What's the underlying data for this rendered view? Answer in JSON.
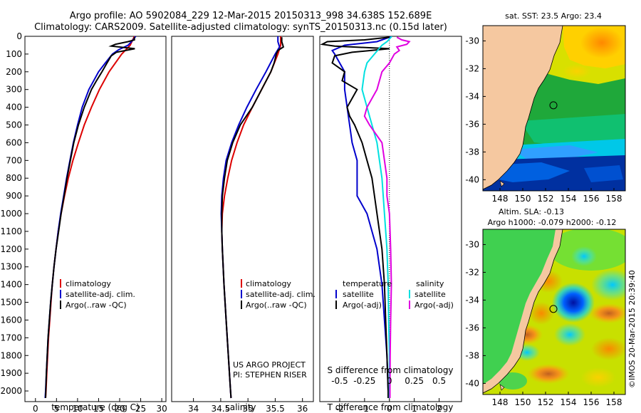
{
  "header": {
    "title_line1": "Argo profile: AO 5902084_229 12-Mar-2015 20150313_998 34.638S 152.689E",
    "title_line2": "Climatology: CARS2009. Satellite-adjusted climatology: synTS_20150313.nc (0.15d later)"
  },
  "chart_data": [
    {
      "type": "line",
      "title": "",
      "xlabel": "temperature (deg C)",
      "ylabel": "",
      "xlim": [
        -2.5,
        31
      ],
      "ylim": [
        2060,
        0
      ],
      "xticks": [
        "0",
        "5",
        "10",
        "15",
        "20",
        "25",
        "30"
      ],
      "xtick_values": [
        0,
        5,
        10,
        15,
        20,
        25,
        30
      ],
      "yticks": [
        "0",
        "100",
        "200",
        "300",
        "400",
        "500",
        "600",
        "700",
        "800",
        "900",
        "1000",
        "1100",
        "1200",
        "1300",
        "1400",
        "1500",
        "1600",
        "1700",
        "1800",
        "1900",
        "2000"
      ],
      "legend": [
        "climatology",
        "satellite-adj. clim.",
        "Argo(..raw -QC)"
      ],
      "series": [
        {
          "name": "climatology",
          "color": "#dd0000",
          "depth": [
            0,
            50,
            100,
            200,
            300,
            400,
            500,
            600,
            700,
            800,
            900,
            1000,
            1100,
            1200,
            1300,
            1400,
            1500,
            1600,
            1700,
            1800,
            1900,
            2000,
            2040
          ],
          "values": [
            23.5,
            22.5,
            20.5,
            17.5,
            15.2,
            13.3,
            11.6,
            10.2,
            8.9,
            7.8,
            6.9,
            6.1,
            5.4,
            4.9,
            4.4,
            4.0,
            3.7,
            3.4,
            3.1,
            2.9,
            2.7,
            2.5,
            2.4
          ]
        },
        {
          "name": "satellite-adj. clim.",
          "color": "#0000cc",
          "depth": [
            0,
            20,
            50,
            75,
            100,
            150,
            200,
            300,
            400,
            500,
            600,
            700,
            800,
            900,
            1000,
            1100,
            1200,
            1300,
            1400,
            1500,
            1600,
            1700,
            1800,
            1900,
            2000,
            2040
          ],
          "values": [
            23.8,
            23.2,
            22.0,
            19.8,
            18.3,
            16.6,
            15.0,
            12.7,
            11.1,
            10.0,
            9.0,
            8.2,
            7.4,
            6.7,
            6.0,
            5.4,
            4.9,
            4.4,
            4.0,
            3.6,
            3.3,
            3.0,
            2.8,
            2.6,
            2.4,
            2.3
          ]
        },
        {
          "name": "Argo(..raw -QC)",
          "color": "#000000",
          "depth": [
            5,
            20,
            30,
            45,
            55,
            70,
            90,
            110,
            150,
            200,
            250,
            300,
            400,
            500,
            600,
            700,
            800,
            900,
            1000,
            1100,
            1200,
            1300,
            1400,
            1500,
            1600,
            1700,
            1800,
            1900,
            2000,
            2040
          ],
          "values": [
            23.5,
            23.5,
            22.0,
            19.0,
            18.0,
            23.6,
            19.2,
            18.0,
            17.0,
            15.8,
            14.5,
            13.3,
            11.6,
            10.2,
            9.1,
            8.3,
            7.5,
            6.8,
            6.1,
            5.5,
            4.9,
            4.4,
            4.0,
            3.6,
            3.3,
            3.0,
            2.8,
            2.6,
            2.45,
            2.4
          ]
        }
      ]
    },
    {
      "type": "line",
      "title": "",
      "xlabel": "salinity",
      "ylabel": "",
      "xlim": [
        33.6,
        36.2
      ],
      "ylim": [
        2060,
        0
      ],
      "xticks": [
        "34",
        "34.5",
        "35",
        "35.5",
        "36"
      ],
      "xtick_values": [
        34,
        34.5,
        35,
        35.5,
        36
      ],
      "legend": [
        "climatology",
        "satellite-adj. clim.",
        "Argo(..raw -QC)"
      ],
      "annotation": [
        "US ARGO PROJECT",
        "PI: STEPHEN RISER"
      ],
      "series": [
        {
          "name": "climatology",
          "color": "#dd0000",
          "depth": [
            0,
            50,
            100,
            200,
            300,
            400,
            500,
            600,
            700,
            800,
            900,
            1000,
            1100,
            1200,
            1400,
            1600,
            1800,
            2000,
            2040
          ],
          "values": [
            35.6,
            35.6,
            35.55,
            35.42,
            35.25,
            35.08,
            34.92,
            34.8,
            34.7,
            34.63,
            34.57,
            34.53,
            34.52,
            34.53,
            34.56,
            34.6,
            34.64,
            34.68,
            34.69
          ]
        },
        {
          "name": "satellite-adj. clim.",
          "color": "#0000cc",
          "depth": [
            0,
            30,
            60,
            100,
            200,
            300,
            400,
            500,
            600,
            700,
            800,
            900,
            1000,
            1100,
            1200,
            1400,
            1600,
            1800,
            2000,
            2040
          ],
          "values": [
            35.55,
            35.55,
            35.58,
            35.5,
            35.33,
            35.15,
            34.98,
            34.83,
            34.7,
            34.6,
            34.55,
            34.52,
            34.51,
            34.52,
            34.53,
            34.56,
            34.6,
            34.64,
            34.68,
            34.69
          ]
        },
        {
          "name": "Argo(..raw -QC)",
          "color": "#000000",
          "depth": [
            5,
            30,
            60,
            80,
            100,
            150,
            200,
            300,
            400,
            500,
            600,
            700,
            800,
            900,
            1000,
            1100,
            1200,
            1400,
            1600,
            1800,
            2000,
            2040
          ],
          "values": [
            35.62,
            35.62,
            35.65,
            35.55,
            35.52,
            35.48,
            35.42,
            35.25,
            35.08,
            34.86,
            34.72,
            34.62,
            34.57,
            34.53,
            34.52,
            34.52,
            34.53,
            34.56,
            34.6,
            34.64,
            34.68,
            34.69
          ]
        }
      ]
    },
    {
      "type": "line",
      "title": "",
      "xlabel": "T difference from climatology",
      "xlabel_top": "S difference from climatology",
      "ylabel": "",
      "xlim": [
        -2.8,
        2.9
      ],
      "ylim": [
        2060,
        0
      ],
      "xticks": [
        "-2",
        "-1",
        "0",
        "1",
        "2"
      ],
      "xtick_values": [
        -2,
        -1,
        0,
        1,
        2
      ],
      "s_ticks": [
        "-0.5",
        "-0.25",
        "0",
        "0.25",
        "0.5"
      ],
      "s_tick_positions_in_T_units": [
        -2,
        -1,
        0,
        1,
        2
      ],
      "legend_group1": "temperature",
      "legend_group2": "salinity",
      "legend": [
        "satellite",
        "Argo(-adj)",
        "satellite",
        "Argo(-adj)"
      ],
      "series": [
        {
          "name": "temperature satellite",
          "color": "#0000cc",
          "depth": [
            0,
            30,
            50,
            80,
            100,
            150,
            200,
            300,
            400,
            500,
            600,
            700,
            800,
            900,
            1000,
            1200,
            1400,
            1600,
            1800,
            2000,
            2040
          ],
          "values": [
            0.1,
            -0.5,
            -1.8,
            -2.3,
            -2.2,
            -2.0,
            -1.8,
            -1.8,
            -1.7,
            -1.6,
            -1.5,
            -1.3,
            -1.3,
            -1.3,
            -0.9,
            -0.5,
            -0.3,
            -0.2,
            -0.1,
            -0.05,
            -0.05
          ]
        },
        {
          "name": "temperature Argo(-adj)",
          "color": "#000000",
          "depth": [
            5,
            20,
            30,
            45,
            55,
            70,
            90,
            110,
            150,
            200,
            250,
            300,
            400,
            450,
            500,
            600,
            700,
            800,
            900,
            1000,
            1100,
            1200,
            1400,
            1600,
            1800,
            2000,
            2040
          ],
          "values": [
            0.0,
            -1.0,
            -2.5,
            -2.7,
            -2.2,
            0.0,
            -1.5,
            -2.2,
            -2.3,
            -1.8,
            -1.9,
            -1.3,
            -1.7,
            -1.6,
            -1.4,
            -1.1,
            -0.9,
            -0.7,
            -0.6,
            -0.5,
            -0.4,
            -0.3,
            -0.2,
            -0.15,
            -0.1,
            -0.05,
            -0.05
          ]
        },
        {
          "name": "salinity satellite",
          "color": "#00e0e0",
          "depth": [
            0,
            30,
            50,
            100,
            150,
            200,
            300,
            400,
            500,
            600,
            700,
            800,
            1000,
            1200,
            1400,
            1600,
            1800,
            2000,
            2040
          ],
          "values": [
            0.1,
            -0.1,
            -0.3,
            -0.6,
            -0.9,
            -1.0,
            -1.1,
            -0.9,
            -0.7,
            -0.5,
            -0.4,
            -0.3,
            -0.2,
            -0.1,
            -0.05,
            -0.03,
            0.0,
            0.0,
            0.0
          ]
        },
        {
          "name": "salinity Argo(-adj)",
          "color": "#e000e0",
          "depth": [
            5,
            20,
            30,
            45,
            60,
            80,
            100,
            150,
            200,
            300,
            400,
            450,
            500,
            600,
            700,
            800,
            900,
            1000,
            1200,
            1400,
            1600,
            1800,
            2000,
            2040
          ],
          "values": [
            0.3,
            0.5,
            0.8,
            0.7,
            0.3,
            0.4,
            0.2,
            0.0,
            -0.3,
            -0.5,
            -0.9,
            -1.0,
            -0.8,
            -0.3,
            -0.2,
            -0.1,
            -0.1,
            0.0,
            0.05,
            0.08,
            0.05,
            0.03,
            0.02,
            0.02
          ]
        }
      ]
    },
    {
      "type": "heatmap",
      "title": "sat. SST: 23.5  Argo: 23.4",
      "xlabel": "",
      "ylabel": "",
      "xticks": [
        "148",
        "150",
        "152",
        "154",
        "156",
        "158"
      ],
      "xtick_values": [
        148,
        150,
        152,
        154,
        156,
        158
      ],
      "yticks": [
        "-30",
        "-32",
        "-34",
        "-36",
        "-38",
        "-40"
      ],
      "ytick_values": [
        -30,
        -32,
        -34,
        -36,
        -38,
        -40
      ],
      "xlim": [
        146.5,
        159
      ],
      "ylim": [
        -40.8,
        -28.9
      ],
      "marker": {
        "lon": 152.689,
        "lat": -34.638
      }
    },
    {
      "type": "heatmap",
      "title": "Altim. SLA: -0.13",
      "subtitle": "Argo h1000: -0.079 h2000: -0.12",
      "xlabel": "",
      "ylabel": "",
      "xticks": [
        "148",
        "150",
        "152",
        "154",
        "156",
        "158"
      ],
      "xtick_values": [
        148,
        150,
        152,
        154,
        156,
        158
      ],
      "yticks": [
        "-30",
        "-32",
        "-34",
        "-36",
        "-38",
        "-40"
      ],
      "ytick_values": [
        -30,
        -32,
        -34,
        -36,
        -38,
        -40
      ],
      "xlim": [
        146.5,
        159
      ],
      "ylim": [
        -40.8,
        -28.9
      ],
      "marker": {
        "lon": 152.689,
        "lat": -34.638
      }
    }
  ],
  "footer": {
    "credit": "©IMOS 20-Mar-2015 20:39:40"
  },
  "colors": {
    "red": "#dd0000",
    "blue": "#0000cc",
    "black": "#000000",
    "cyan": "#00e0e0",
    "magenta": "#e000e0",
    "land": "#f5c8a0"
  }
}
